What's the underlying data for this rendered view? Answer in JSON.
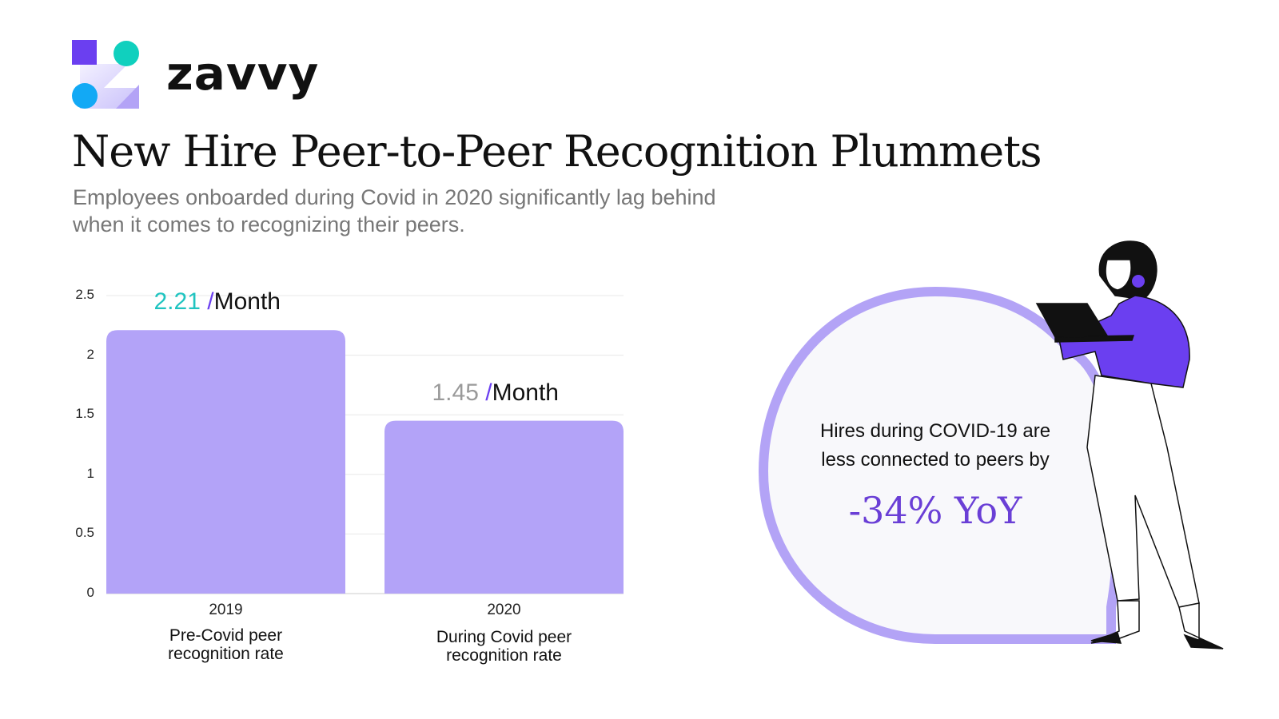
{
  "brand": {
    "name": "zavvy",
    "colors": {
      "square": "#6b3ff0",
      "teal": "#10d0be",
      "blue": "#12a9f5",
      "lavender": "#b3a3f6"
    }
  },
  "header": {
    "title": "New Hire Peer-to-Peer Recognition Plummets",
    "subtitle_line1": "Employees onboarded during Covid in 2020 significantly lag behind",
    "subtitle_line2": "when it comes to recognizing their peers."
  },
  "chart_data": {
    "type": "bar",
    "categories": [
      "2019",
      "2020"
    ],
    "category_descriptions": [
      [
        "Pre-Covid peer",
        "recognition rate"
      ],
      [
        "During Covid peer",
        "recognition rate"
      ]
    ],
    "values": [
      2.21,
      1.45
    ],
    "data_labels": [
      {
        "value": "2.21",
        "unit": "/Month",
        "value_color": "#1fc4c0"
      },
      {
        "value": "1.45",
        "unit": "/Month",
        "value_color": "#9a9a9a"
      }
    ],
    "ylim": [
      0,
      2.5
    ],
    "yticks": [
      "0",
      "0.5",
      "1",
      "1.5",
      "2",
      "2.5"
    ],
    "grid": true,
    "bar_color": "#b3a3f8",
    "unit_slash_color": "#6b3ff0"
  },
  "callout": {
    "line1": "Hires during COVID-19 are",
    "line2": "less connected to peers by",
    "stat": "-34% YoY",
    "ring_color": "#b3a3f6",
    "stat_color": "#6a3fd6"
  }
}
